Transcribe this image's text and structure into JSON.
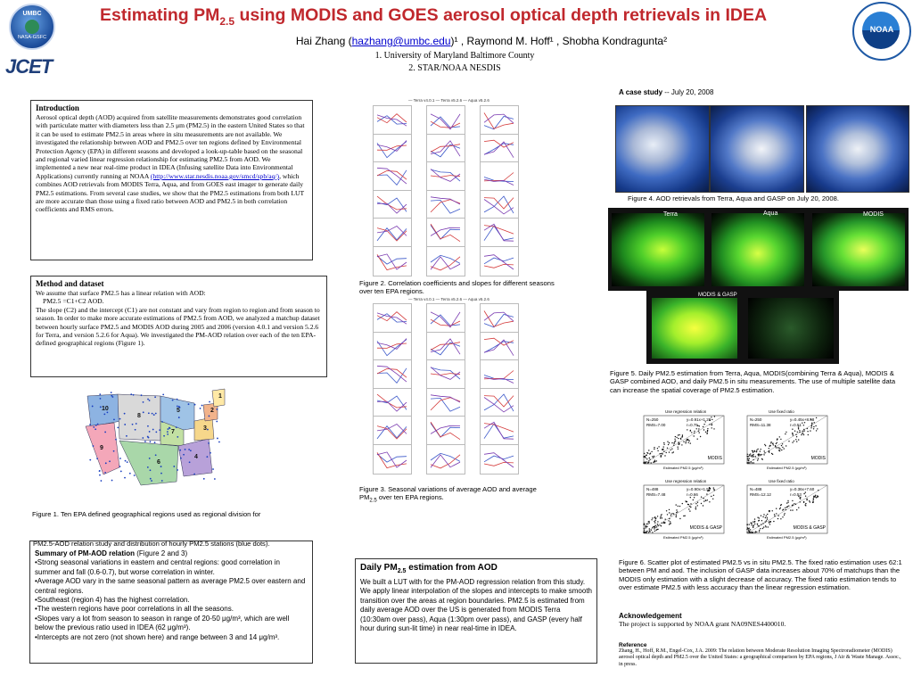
{
  "header": {
    "title_pre": "Estimating PM",
    "title_sub": "2.5",
    "title_post": " using MODIS and GOES aerosol optical depth retrievals in IDEA",
    "authors_pre": "Hai Zhang (",
    "author_email": "hazhang@umbc.edu",
    "authors_post": ")¹ ,  Raymond M. Hoff¹ , Shobha Kondragunta²",
    "affil_1": "1. University of Maryland Baltimore County",
    "affil_2": "2.  STAR/NOAA NESDIS",
    "logo_umbc_text": "UMBC",
    "logo_nasa_text": "NASA-GSFC",
    "logo_jcet_text": "JCET",
    "logo_noaa_text": "NOAA"
  },
  "intro": {
    "heading": "Introduction",
    "p1": "Aerosol optical depth (AOD) acquired from satellite measurements demonstrates good correlation with particulate matter with diameters less than 2.5 μm (PM2.5) in the eastern United States so that it can be used to estimate PM2.5 in areas where in situ measurements are not available.  We investigated the relationship between AOD and PM2.5 over ten regions defined by Environmental Protection Agency (EPA) in different seasons and developed a look-up-table based on the seasonal and regional varied linear regression relationship for estimating PM2.5 from AOD.  We implemented a new near real-time product in IDEA (Infusing satellite Data into Environmental Applications) currently running at NOAA",
    "link": "(http://www.star.nesdis.noaa.gov/smcd/spb/aq/)",
    "p2": ", which combines  AOD retrievals from MODIS Terra, Aqua, and from GOES east imager to generate daily PM2.5 estimations.  From several case studies, we show that the PM2.5 estimations from both LUT are more accurate than those using a fixed ratio between AOD and PM2.5 in both correlation coefficients and RMS errors."
  },
  "method": {
    "heading": "Method and dataset",
    "line1": "We assume that surface PM2.5 has a linear relation with AOD:",
    "equation": "PM2.5 =C1+C2 AOD.",
    "p1": "The slope (C2) and the intercept (C1) are not constant and vary from region to region and from season to season.  In order to make more accurate estimations of PM2.5 from AOD, we analyzed  a matchup dataset between hourly surface PM2.5 and MODIS AOD during 2005 and 2006 (version 4.0.1 and version 5.2.6 for Terra, and version 5.2.6 for Aqua).   We investigated the PM-AOD relation over each of the ten EPA-defined geographical regions (Figure 1)."
  },
  "figure1": {
    "region_numbers": [
      "1",
      "2",
      "3",
      "4",
      "5",
      "6",
      "7",
      "8",
      "9",
      "10"
    ],
    "caption_1": "Figure 1. Ten EPA defined geographical regions used as regional division for",
    "caption_2": "PM2.5-AOD relation study and distribution of hourly PM2.5 stations (blue dots)."
  },
  "summary": {
    "heading": "Summary of PM-AOD relation",
    "heading_note": " (Figure 2 and 3)",
    "bullets": [
      "•Strong seasonal variations in eastern and central regions: good correlation in summer and fall (0.6-0.7), but worse correlation in winter.",
      "•Average AOD vary in the same seasonal pattern as average PM2.5 over eastern and central regions.",
      "•Southeast (region 4) has the highest correlation.",
      "•The western regions have poor correlations in all the seasons.",
      "•Slopes vary a lot from season to season in range of 20-50 μg/m³,  which are well below the previous ratio used in IDEA (62 μg/m³).",
      "•Intercepts are not zero (not shown here) and range between 3 and 14 μg/m³."
    ]
  },
  "figure2": {
    "legend": "— Terra v4.0.1  — Terra v5.2.6  — Aqua v5.2.6",
    "caption": "Figure 2. Correlation coefficients and slopes for different seasons over ten EPA regions."
  },
  "figure3": {
    "legend": "— Terra v4.0.1  — Terra v5.2.6  — Aqua v5.2.6",
    "caption_pre": "Figure 3.  Seasonal variations of average AOD and average PM",
    "caption_sub": "2.5",
    "caption_post": " over ten EPA regions."
  },
  "daily": {
    "heading_pre": "Daily PM",
    "heading_sub": "2.5",
    "heading_post": " estimation from AOD",
    "body": "We built a LUT with for the PM-AOD regression relation from this study.  We apply linear interpolation of the slopes and intercepts to make smooth transition over the areas at region boundaries.  PM2.5 is estimated from daily average AOD over the US is generated from MODIS Terra (10:30am over pass), Aqua (1:30pm over pass), and GASP (every half hour during sun-lit time) in near real-time in IDEA."
  },
  "case": {
    "heading": "A case study",
    "date": " -- July 20, 2008",
    "fig4_caption": "Figure 4. AOD retrievals from Terra, Aqua and GASP on July 20, 2008.",
    "pm_labels": [
      "Terra",
      "Aqua",
      "MODIS",
      "MODIS & GASP"
    ],
    "fig5_caption": "Figure 5.  Daily PM2.5 estimation from Terra, Aqua, MODIS(combining Terra & Aqua), MODIS & GASP combined AOD, and daily PM2.5 in situ measurements.  The use of multiple satellite data can increase the spatial coverage of PM2.5 estimation."
  },
  "scatter": {
    "panels": [
      {
        "title": "Use regression relation",
        "n": "N=250",
        "rms": "RMS=7.00",
        "eq": "y=0.91x+1.28",
        "r": "r=0.75",
        "label": "MODIS"
      },
      {
        "title": "Use fixed ratio",
        "n": "N=250",
        "rms": "RMS=11.38",
        "eq": "y=0.45x+8.58",
        "r": "r=0.51",
        "label": "MODIS"
      },
      {
        "title": "Use regression relation",
        "n": "N=488",
        "rms": "RMS=7.48",
        "eq": "y=0.90x+1.52",
        "r": "r=0.66",
        "label": "MODIS & GASP"
      },
      {
        "title": "Use fixed ratio",
        "n": "N=488",
        "rms": "RMS=12.12",
        "eq": "y=0.36x+7.60",
        "r": "r=0.53",
        "label": "MODIS & GASP"
      }
    ],
    "xlabel": "Estimated PM2.5 (μg/m³)",
    "ylabel": "In-situ PM2.5 (μg/m³)",
    "fig6_caption": "Figure 6. Scatter plot of estimated PM2.5 vs in situ PM2.5.  The fixed ratio estimation uses 62:1 between PM and aod.  The inclusion of GASP data increases about 70% of matchups than the MODIS only estimation with a slight decrease of accuracy.  The fixed ratio estimation tends to over estimate PM2.5 with less accuracy than the linear regression estimation."
  },
  "ack": {
    "heading": "Acknowledgement",
    "body": "The project is supported by NOAA grant NA09NES4400010."
  },
  "ref": {
    "heading": "Reference",
    "body": "Zhang, H., Hoff, R.M., Engel-Cox, J.A. 2009: The relation between Moderate Resolution Imaging Spectroradiometer (MODIS) aerosol optical depth and PM2.5 over the United States: a geographical comparison by EPA regions, J Air & Waste Manage. Assoc., in press."
  },
  "colors": {
    "title": "#c0282d",
    "link": "#0000cc",
    "noaa_blue": "#1f5aa6"
  }
}
